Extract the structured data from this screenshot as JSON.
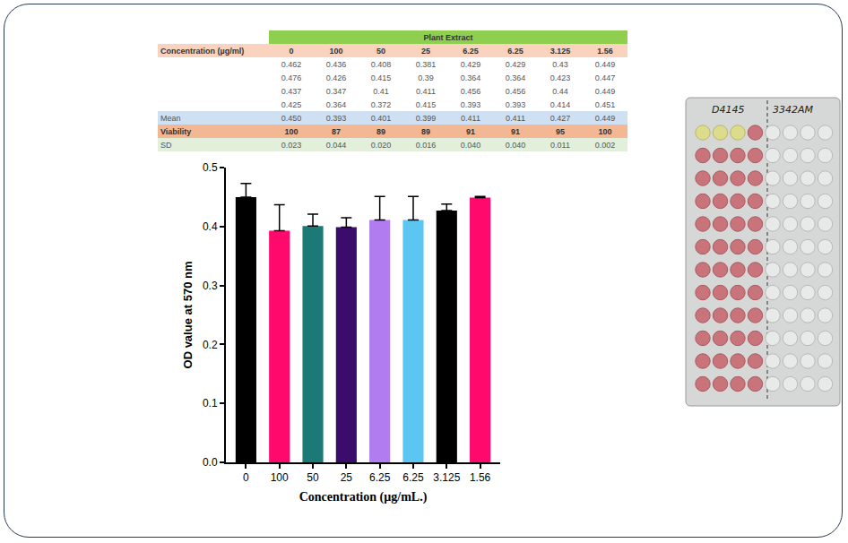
{
  "table": {
    "header": "Plant Extract",
    "row_label_header": "Concentration (µg/ml)",
    "columns": [
      "0",
      "100",
      "50",
      "25",
      "6.25",
      "6.25",
      "3.125",
      "1.56"
    ],
    "rows": [
      [
        "0.462",
        "0.436",
        "0.408",
        "0.381",
        "0.429",
        "0.429",
        "0.43",
        "0.449"
      ],
      [
        "0.476",
        "0.426",
        "0.415",
        "0.39",
        "0.364",
        "0.364",
        "0.423",
        "0.447"
      ],
      [
        "0.437",
        "0.347",
        "0.41",
        "0.411",
        "0.456",
        "0.456",
        "0.44",
        "0.449"
      ],
      [
        "0.425",
        "0.364",
        "0.372",
        "0.415",
        "0.393",
        "0.393",
        "0.414",
        "0.451"
      ]
    ],
    "summary": [
      {
        "label": "Mean",
        "values": [
          "0.450",
          "0.393",
          "0.401",
          "0.399",
          "0.411",
          "0.411",
          "0.427",
          "0.449"
        ]
      },
      {
        "label": "Viability",
        "values": [
          "100",
          "87",
          "89",
          "89",
          "91",
          "91",
          "95",
          "100"
        ]
      },
      {
        "label": "SD",
        "values": [
          "0.023",
          "0.044",
          "0.020",
          "0.016",
          "0.040",
          "0.040",
          "0.011",
          "0.002"
        ]
      }
    ]
  },
  "chart_data": {
    "type": "bar",
    "x_label": "Concentration (µg/mL.)",
    "y_label": "OD value at 570 nm",
    "categories": [
      "0",
      "100",
      "50",
      "25",
      "6.25",
      "6.25",
      "3.125",
      "1.56"
    ],
    "values": [
      0.45,
      0.393,
      0.401,
      0.399,
      0.411,
      0.411,
      0.427,
      0.449
    ],
    "error": [
      0.023,
      0.044,
      0.02,
      0.016,
      0.04,
      0.04,
      0.011,
      0.002
    ],
    "colors": [
      "#000000",
      "#ff0a6c",
      "#1b7a76",
      "#3a0d6b",
      "#b07cf0",
      "#5cc6f2",
      "#000000",
      "#ff0a6c"
    ],
    "ylim": [
      0,
      0.5
    ],
    "yticks": [
      {
        "value": 0,
        "label": "0.0"
      },
      0.1,
      0.2,
      0.3,
      0.4,
      0.5
    ],
    "grid": false
  },
  "photo": {
    "labels": [
      "D4145",
      "3342AM"
    ]
  }
}
